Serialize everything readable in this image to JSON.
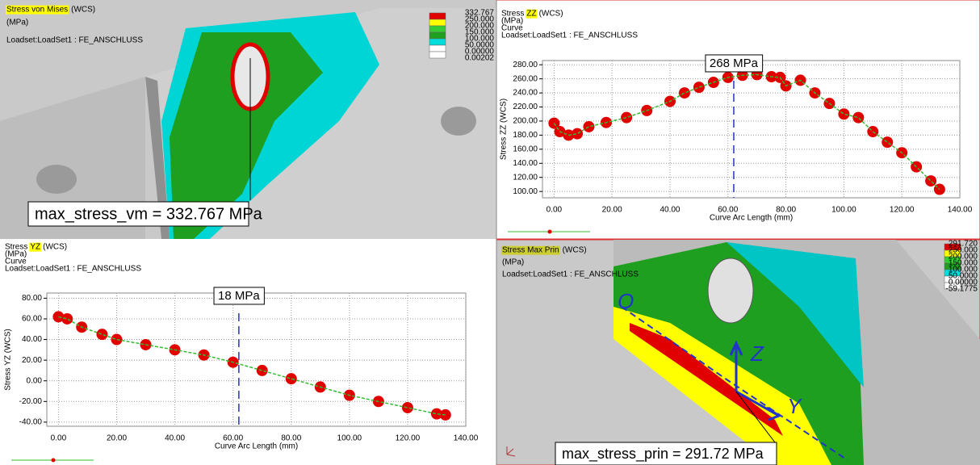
{
  "panels": [
    {
      "title": "Stress von Mises",
      "title_suffix": "(WCS)",
      "unit": "(MPa)",
      "loadset": "Loadset:LoadSet1 :  FE_ANSCHLUSS",
      "legend": {
        "labels": [
          "332.767",
          "250.000",
          "200.000",
          "150.000",
          "100.000",
          "50.0000",
          "0.00000",
          "0.00202"
        ],
        "colors": [
          "#e00000",
          "#ffff00",
          "#33cc33",
          "#1f9f1f",
          "#00dddd",
          "#ffffff",
          "#ffffff"
        ]
      },
      "annotation": "max_stress_vm = 332.767  MPa"
    },
    {
      "title": "Stress Max Prin",
      "title_suffix": "(WCS)",
      "unit": "(MPa)",
      "loadset": "Loadset:LoadSet1 :  FE_ANSCHLUSS",
      "legend": {
        "labels": [
          "291.720",
          "250.000",
          "200.000",
          "150.000",
          "100.000",
          "50.0000",
          "0.00000",
          "-59.1775"
        ],
        "colors": [
          "#e00000",
          "#ffff00",
          "#33cc33",
          "#1f9f1f",
          "#00dddd",
          "#ffffff",
          "#ffffff"
        ]
      },
      "annotation": "max_stress_prin = 291.72  MPa",
      "sketch_labels": [
        "O",
        "Z",
        "Y"
      ]
    }
  ],
  "chart_data": [
    {
      "type": "line",
      "title_parts": [
        "Stress",
        "ZZ",
        "(WCS)"
      ],
      "subtitle": [
        "(MPa)",
        "Curve",
        "Loadset:LoadSet1 :  FE_ANSCHLUSS"
      ],
      "xlabel": "Curve Arc Length (mm)",
      "ylabel": "Stress ZZ (WCS)",
      "annotation": "268 MPa",
      "x": [
        0,
        2,
        5,
        8,
        12,
        18,
        25,
        32,
        40,
        45,
        50,
        55,
        60,
        65,
        70,
        75,
        78,
        80,
        85,
        90,
        95,
        100,
        105,
        110,
        115,
        120,
        125,
        130,
        133
      ],
      "series": [
        {
          "color": "#e00000",
          "line_color": "#33bb33",
          "values": [
            197,
            185,
            180,
            182,
            192,
            198,
            205,
            215,
            228,
            240,
            248,
            255,
            262,
            265,
            266,
            263,
            262,
            250,
            258,
            240,
            225,
            210,
            205,
            185,
            170,
            155,
            135,
            115,
            103
          ]
        }
      ],
      "xlim": [
        -4,
        140
      ],
      "ylim": [
        91,
        286
      ],
      "xticks": [
        {
          "value": 0,
          "label": "0.00"
        },
        {
          "value": 20,
          "label": "20.00"
        },
        {
          "value": 40,
          "label": "40.00"
        },
        {
          "value": 60,
          "label": "60.00"
        },
        {
          "value": 80,
          "label": "80.00"
        },
        {
          "value": 100,
          "label": "100.00"
        },
        {
          "value": 120,
          "label": "120.00"
        },
        {
          "value": 140,
          "label": "140.00"
        }
      ],
      "yticks": [
        {
          "value": 100,
          "label": "100.00"
        },
        {
          "value": 120,
          "label": "120.00"
        },
        {
          "value": 140,
          "label": "140.00"
        },
        {
          "value": 160,
          "label": "160.00"
        },
        {
          "value": 180,
          "label": "180.00"
        },
        {
          "value": 200,
          "label": "200.00"
        },
        {
          "value": 220,
          "label": "220.00"
        },
        {
          "value": 240,
          "label": "240.00"
        },
        {
          "value": 260,
          "label": "260.00"
        },
        {
          "value": 280,
          "label": "280.00"
        }
      ],
      "grid": true
    },
    {
      "type": "line",
      "title_parts": [
        "Stress",
        "YZ",
        "(WCS)"
      ],
      "subtitle": [
        "(MPa)",
        "Curve",
        "Loadset:LoadSet1 :  FE_ANSCHLUSS"
      ],
      "xlabel": "Curve Arc Length (mm)",
      "ylabel": "Stress YZ (WCS)",
      "annotation": "18 MPa",
      "x": [
        0,
        3,
        8,
        15,
        20,
        30,
        40,
        50,
        60,
        70,
        80,
        90,
        100,
        110,
        120,
        130,
        133
      ],
      "series": [
        {
          "color": "#e00000",
          "line_color": "#33bb33",
          "values": [
            62,
            60,
            52,
            45,
            40,
            35,
            30,
            25,
            18,
            10,
            2,
            -6,
            -14,
            -20,
            -26,
            -32,
            -33
          ]
        }
      ],
      "xlim": [
        -4,
        140
      ],
      "ylim": [
        -44,
        85
      ],
      "xticks": [
        {
          "value": 0,
          "label": "0.00"
        },
        {
          "value": 20,
          "label": "20.00"
        },
        {
          "value": 40,
          "label": "40.00"
        },
        {
          "value": 60,
          "label": "60.00"
        },
        {
          "value": 80,
          "label": "80.00"
        },
        {
          "value": 100,
          "label": "100.00"
        },
        {
          "value": 120,
          "label": "120.00"
        },
        {
          "value": 140,
          "label": "140.00"
        }
      ],
      "yticks": [
        {
          "value": -40,
          "label": "-40.00"
        },
        {
          "value": -20,
          "label": "-20.00"
        },
        {
          "value": 0,
          "label": "0.00"
        },
        {
          "value": 20,
          "label": "20.00"
        },
        {
          "value": 40,
          "label": "40.00"
        },
        {
          "value": 60,
          "label": "60.00"
        },
        {
          "value": 80,
          "label": "80.00"
        }
      ],
      "grid": true
    }
  ]
}
